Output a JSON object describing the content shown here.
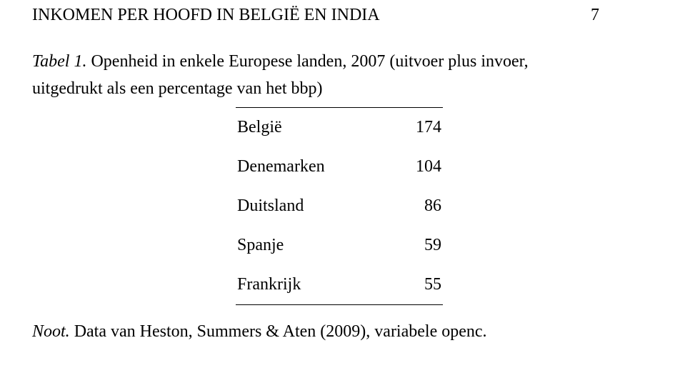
{
  "header": {
    "running_title": "INKOMEN PER HOOFD IN BELGIË EN INDIA",
    "page_number": "7"
  },
  "caption": {
    "label": "Tabel 1.",
    "text": " Openheid in enkele Europese landen, 2007 (uitvoer plus invoer, uitgedrukt als een percentage van het bbp)"
  },
  "table": {
    "type": "table",
    "columns": [
      "country",
      "value"
    ],
    "rows": [
      {
        "country": "België",
        "value": "174"
      },
      {
        "country": "Denemarken",
        "value": "104"
      },
      {
        "country": "Duitsland",
        "value": "86"
      },
      {
        "country": "Spanje",
        "value": "59"
      },
      {
        "country": "Frankrijk",
        "value": "55"
      }
    ],
    "rule_color": "#000000",
    "font_size_pt": 18,
    "background_color": "#ffffff"
  },
  "footnote": {
    "label": "Noot.",
    "text": " Data van Heston, Summers & Aten (2009), variabele openc."
  }
}
